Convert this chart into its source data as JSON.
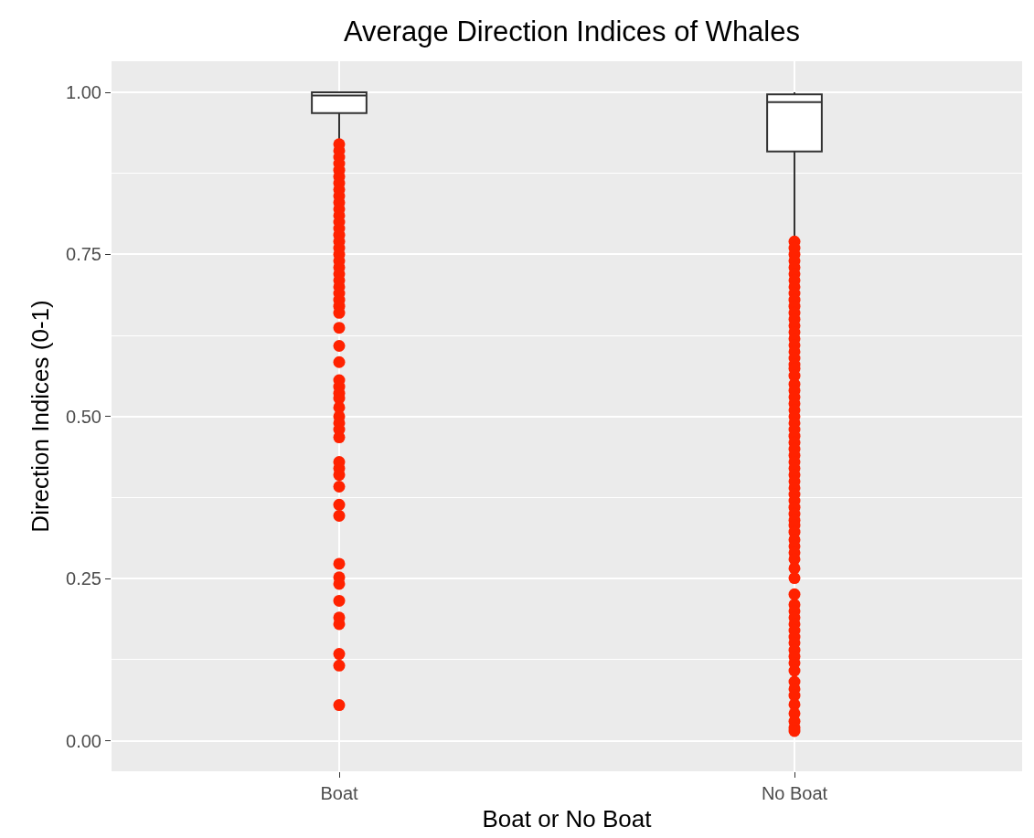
{
  "chart_data": {
    "type": "box",
    "title": "Average Direction Indices of Whales",
    "xlabel": "Boat or No Boat",
    "ylabel": "Direction Indices (0-1)",
    "categories": [
      "Boat",
      "No Boat"
    ],
    "series": [
      {
        "color": "#333333",
        "boxes": [
          {
            "low": 0.92,
            "q1": 0.968,
            "median": 0.995,
            "q3": 1.0,
            "high": 1.0
          },
          {
            "low": 0.77,
            "q1": 0.909,
            "median": 0.985,
            "q3": 0.997,
            "high": 1.0
          }
        ]
      },
      {
        "type": "scatter",
        "color": "#ff2200",
        "x": [
          "Boat",
          "Boat",
          "Boat",
          "Boat",
          "Boat",
          "Boat",
          "Boat",
          "Boat",
          "Boat",
          "Boat",
          "Boat",
          "Boat",
          "Boat",
          "Boat",
          "Boat",
          "Boat",
          "Boat",
          "Boat",
          "Boat",
          "Boat",
          "Boat",
          "Boat",
          "Boat",
          "Boat",
          "Boat",
          "Boat",
          "Boat",
          "Boat",
          "Boat",
          "Boat",
          "Boat",
          "Boat",
          "Boat",
          "Boat",
          "Boat",
          "Boat",
          "Boat",
          "Boat",
          "Boat",
          "Boat",
          "Boat",
          "Boat",
          "Boat",
          "Boat",
          "Boat",
          "Boat",
          "Boat",
          "Boat",
          "Boat",
          "Boat",
          "Boat",
          "Boat",
          "Boat",
          "Boat",
          "No Boat",
          "No Boat",
          "No Boat",
          "No Boat",
          "No Boat",
          "No Boat",
          "No Boat",
          "No Boat",
          "No Boat",
          "No Boat",
          "No Boat",
          "No Boat",
          "No Boat",
          "No Boat",
          "No Boat",
          "No Boat",
          "No Boat",
          "No Boat",
          "No Boat",
          "No Boat",
          "No Boat",
          "No Boat",
          "No Boat",
          "No Boat",
          "No Boat",
          "No Boat",
          "No Boat",
          "No Boat",
          "No Boat",
          "No Boat",
          "No Boat",
          "No Boat",
          "No Boat",
          "No Boat",
          "No Boat",
          "No Boat",
          "No Boat",
          "No Boat",
          "No Boat",
          "No Boat",
          "No Boat",
          "No Boat",
          "No Boat",
          "No Boat",
          "No Boat",
          "No Boat",
          "No Boat",
          "No Boat",
          "No Boat",
          "No Boat",
          "No Boat",
          "No Boat",
          "No Boat",
          "No Boat",
          "No Boat",
          "No Boat",
          "No Boat",
          "No Boat",
          "No Boat",
          "No Boat",
          "No Boat",
          "No Boat",
          "No Boat",
          "No Boat",
          "No Boat",
          "No Boat",
          "No Boat",
          "No Boat",
          "No Boat",
          "No Boat",
          "No Boat",
          "No Boat"
        ],
        "values": [
          0.92,
          0.91,
          0.9,
          0.89,
          0.88,
          0.87,
          0.86,
          0.85,
          0.84,
          0.83,
          0.82,
          0.81,
          0.8,
          0.79,
          0.78,
          0.77,
          0.76,
          0.75,
          0.74,
          0.73,
          0.72,
          0.71,
          0.7,
          0.69,
          0.68,
          0.67,
          0.66,
          0.637,
          0.609,
          0.584,
          0.556,
          0.546,
          0.536,
          0.528,
          0.514,
          0.5,
          0.49,
          0.48,
          0.468,
          0.43,
          0.42,
          0.41,
          0.392,
          0.364,
          0.347,
          0.273,
          0.252,
          0.242,
          0.216,
          0.19,
          0.18,
          0.134,
          0.116,
          0.055,
          0.77,
          0.76,
          0.75,
          0.74,
          0.73,
          0.72,
          0.71,
          0.7,
          0.69,
          0.68,
          0.67,
          0.66,
          0.65,
          0.64,
          0.63,
          0.62,
          0.61,
          0.6,
          0.59,
          0.58,
          0.574,
          0.563,
          0.55,
          0.54,
          0.53,
          0.52,
          0.51,
          0.5,
          0.49,
          0.48,
          0.47,
          0.46,
          0.45,
          0.44,
          0.43,
          0.42,
          0.41,
          0.4,
          0.39,
          0.38,
          0.37,
          0.36,
          0.35,
          0.34,
          0.332,
          0.322,
          0.31,
          0.3,
          0.29,
          0.28,
          0.266,
          0.251,
          0.226,
          0.21,
          0.2,
          0.19,
          0.18,
          0.17,
          0.16,
          0.151,
          0.14,
          0.13,
          0.12,
          0.108,
          0.091,
          0.08,
          0.07,
          0.056,
          0.042,
          0.03,
          0.02,
          0.015
        ]
      }
    ],
    "marker": "circle",
    "ylim": [
      -0.047,
      1.048
    ],
    "yticks": [
      {
        "value": 0,
        "label": "0.00"
      },
      {
        "value": 0.25,
        "label": "0.25"
      },
      {
        "value": 0.5,
        "label": "0.50"
      },
      {
        "value": 0.75,
        "label": "0.75"
      },
      {
        "value": 1,
        "label": "1.00"
      }
    ],
    "grid": true
  }
}
